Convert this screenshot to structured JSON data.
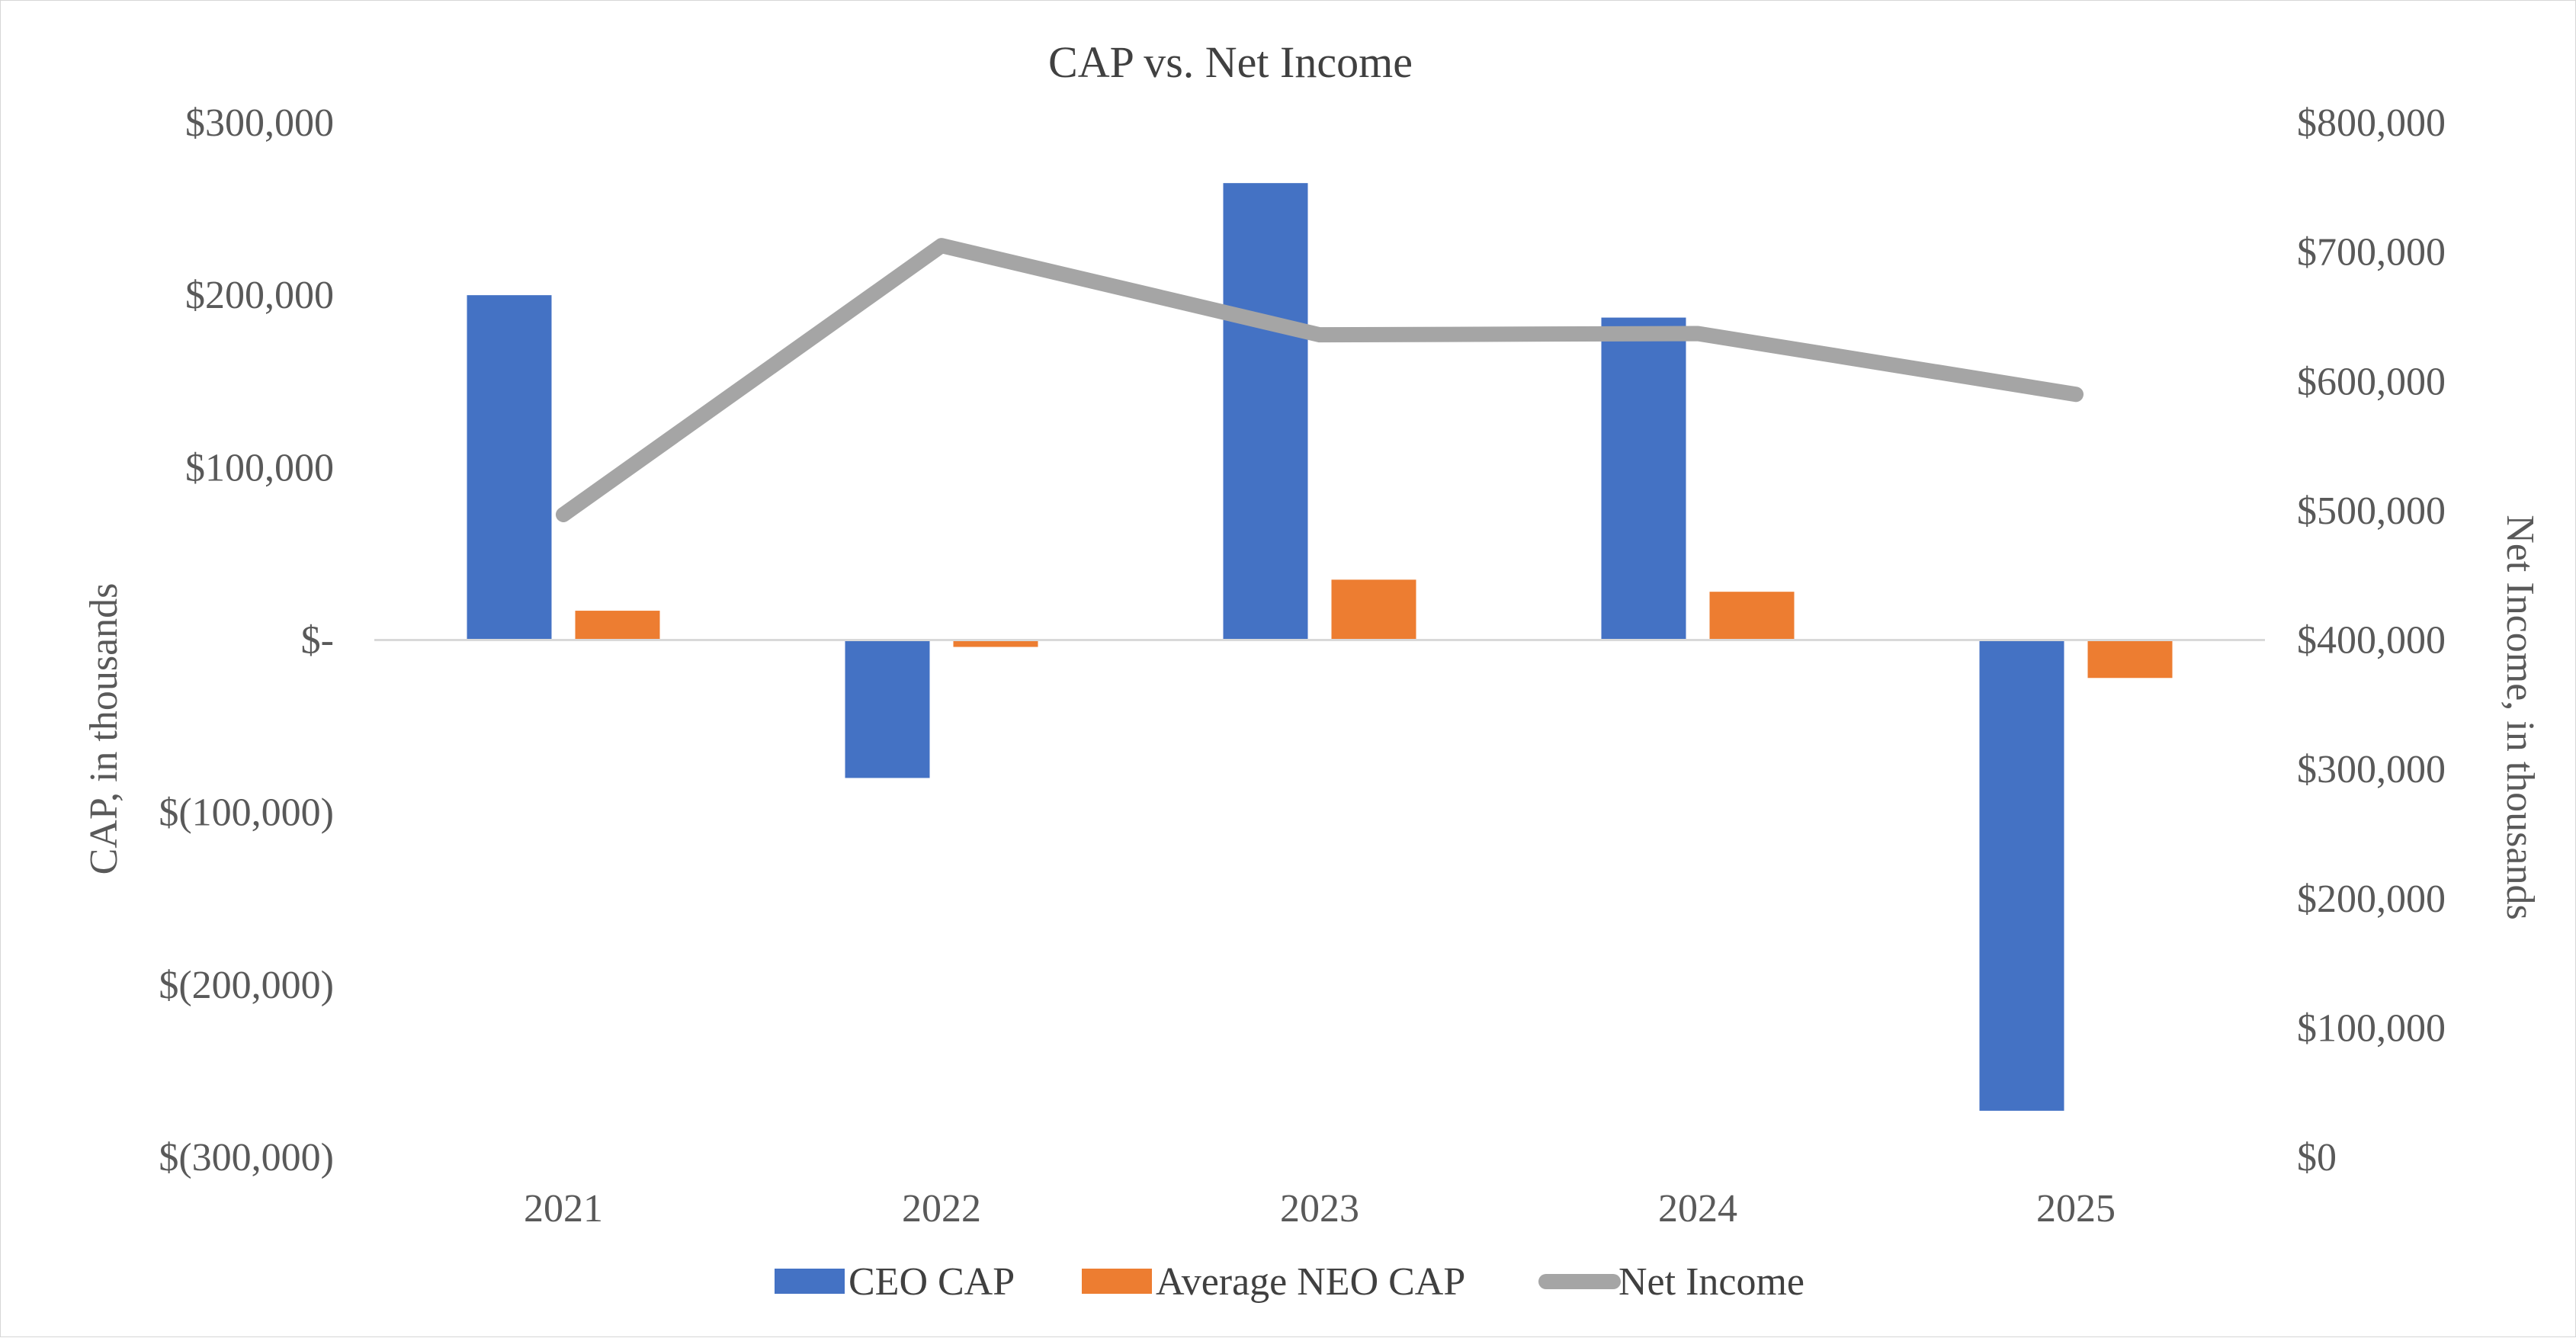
{
  "chart_data": {
    "type": "bar",
    "title": "CAP vs. Net Income",
    "categories": [
      "2021",
      "2022",
      "2023",
      "2024",
      "2025"
    ],
    "series": [
      {
        "name": "CEO CAP",
        "type": "bar",
        "axis": "left",
        "color": "#4472C4",
        "values": [
          200000,
          -80000,
          265000,
          187000,
          -273000
        ]
      },
      {
        "name": "Average NEO CAP",
        "type": "bar",
        "axis": "left",
        "color": "#ED7D31",
        "values": [
          17000,
          -4000,
          35000,
          28000,
          -22000
        ]
      },
      {
        "name": "Net Income",
        "type": "line",
        "axis": "right",
        "color": "#A5A5A5",
        "values": [
          497000,
          705000,
          636000,
          637000,
          590000
        ]
      }
    ],
    "left_axis": {
      "label": "CAP, in thousands",
      "ylim": [
        -300000,
        300000
      ],
      "ticks": [
        300000,
        200000,
        100000,
        0,
        -100000,
        -200000,
        -300000
      ],
      "tick_labels": [
        "$300,000",
        "$200,000",
        "$100,000",
        "$-",
        "$(100,000)",
        "$(200,000)",
        "$(300,000)"
      ]
    },
    "right_axis": {
      "label": "Net Income, in thousands",
      "ylim": [
        0,
        800000
      ],
      "ticks": [
        800000,
        700000,
        600000,
        500000,
        400000,
        300000,
        200000,
        100000,
        0
      ],
      "tick_labels": [
        "$800,000",
        "$700,000",
        "$600,000",
        "$500,000",
        "$400,000",
        "$300,000",
        "$200,000",
        "$100,000",
        "$0"
      ]
    },
    "grid": false,
    "legend_position": "bottom"
  }
}
